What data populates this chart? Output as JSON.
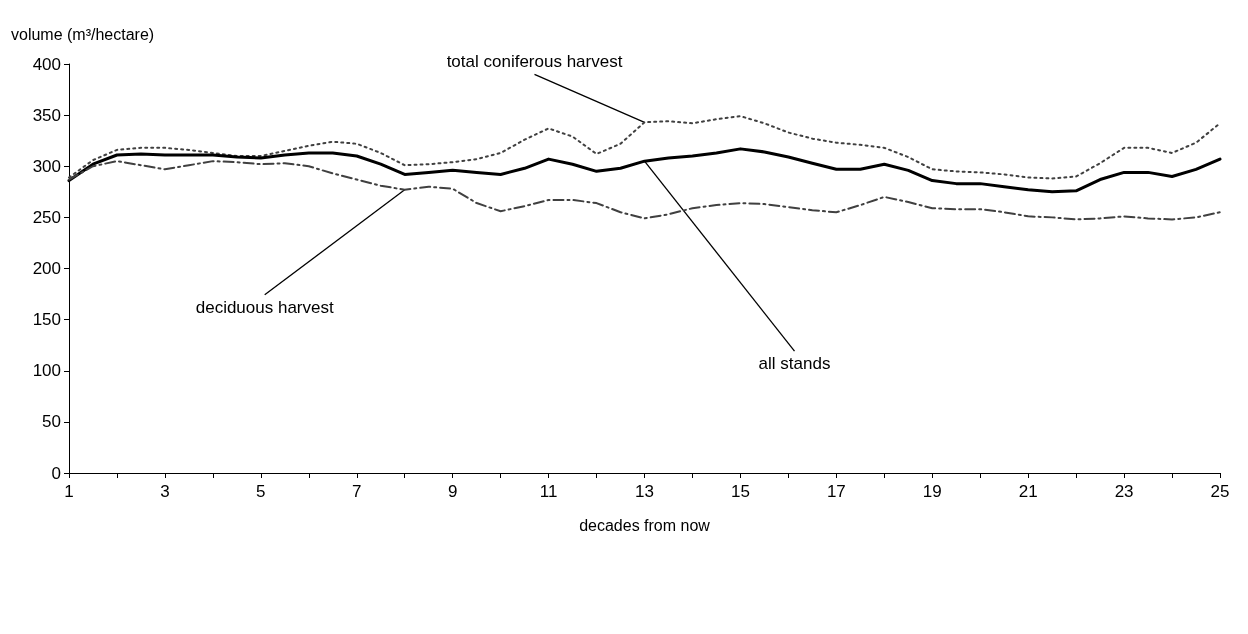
{
  "chart_data": {
    "type": "line",
    "xlabel": "decades from now",
    "ylabel": "volume (m³/hectare)",
    "x": [
      1,
      1.5,
      2,
      2.5,
      3,
      3.5,
      4,
      4.5,
      5,
      5.5,
      6,
      6.5,
      7,
      7.5,
      8,
      8.5,
      9,
      9.5,
      10,
      10.5,
      11,
      11.5,
      12,
      12.5,
      13,
      13.5,
      14,
      14.5,
      15,
      15.5,
      16,
      16.5,
      17,
      17.5,
      18,
      18.5,
      19,
      19.5,
      20,
      20.5,
      21,
      21.5,
      22,
      22.5,
      23,
      23.5,
      24,
      24.5,
      25
    ],
    "series": [
      {
        "name": "total coniferous harvest",
        "color": "#404040",
        "line_style": "dotted",
        "values": [
          289,
          306,
          316,
          318,
          318,
          316,
          313,
          310,
          310,
          315,
          320,
          324,
          322,
          313,
          301,
          302,
          304,
          307,
          313,
          326,
          337,
          329,
          312,
          322,
          343,
          344,
          342,
          346,
          349,
          342,
          333,
          327,
          323,
          321,
          318,
          309,
          297,
          295,
          294,
          292,
          289,
          288,
          290,
          303,
          318,
          318,
          313,
          323,
          342
        ]
      },
      {
        "name": "all stands",
        "color": "#000000",
        "line_style": "solid",
        "values": [
          286,
          302,
          311,
          312,
          311,
          311,
          311,
          309,
          308,
          311,
          313,
          313,
          310,
          302,
          292,
          294,
          296,
          294,
          292,
          298,
          307,
          302,
          295,
          298,
          305,
          308,
          310,
          313,
          317,
          314,
          309,
          303,
          297,
          297,
          302,
          296,
          286,
          283,
          283,
          280,
          277,
          275,
          276,
          287,
          294,
          294,
          290,
          297,
          307
        ]
      },
      {
        "name": "deciduous harvest",
        "color": "#404040",
        "line_style": "dashed",
        "values": [
          287,
          300,
          305,
          301,
          297,
          301,
          305,
          304,
          302,
          303,
          300,
          293,
          287,
          281,
          277,
          280,
          278,
          264,
          256,
          261,
          267,
          267,
          264,
          255,
          249,
          253,
          259,
          262,
          264,
          263,
          260,
          257,
          255,
          262,
          270,
          265,
          259,
          258,
          258,
          255,
          251,
          250,
          248,
          249,
          251,
          249,
          248,
          250,
          255
        ]
      }
    ],
    "xlim": [
      1,
      25
    ],
    "xticks": [
      1,
      {
        "value": 2,
        "label": null
      },
      3,
      {
        "value": 4,
        "label": null
      },
      5,
      {
        "value": 6,
        "label": null
      },
      7,
      {
        "value": 8,
        "label": null
      },
      9,
      {
        "value": 10,
        "label": null
      },
      11,
      {
        "value": 12,
        "label": null
      },
      13,
      {
        "value": 14,
        "label": null
      },
      15,
      {
        "value": 16,
        "label": null
      },
      17,
      {
        "value": 18,
        "label": null
      },
      19,
      {
        "value": 20,
        "label": null
      },
      21,
      {
        "value": 22,
        "label": null
      },
      23,
      {
        "value": 24,
        "label": null
      },
      25
    ],
    "ylim": [
      0,
      400
    ],
    "yticks": [
      0,
      50,
      100,
      150,
      200,
      250,
      300,
      350,
      400
    ],
    "grid": false,
    "legend": false,
    "marker": "none"
  }
}
